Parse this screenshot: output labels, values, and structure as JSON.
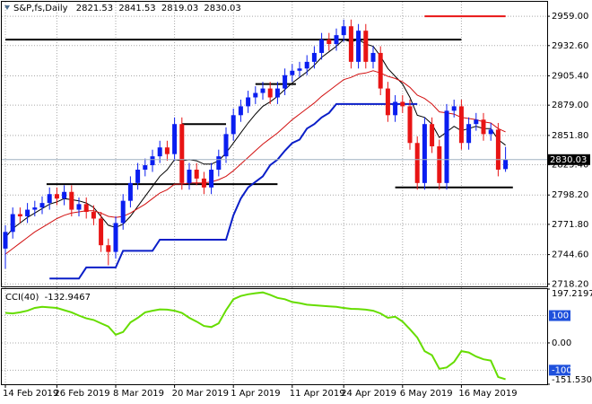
{
  "chart_data": [
    {
      "type": "candlestick",
      "title": "S&P,fs,Daily",
      "categories": [
        "14 Feb 2019",
        null,
        null,
        null,
        null,
        null,
        null,
        "26 Feb 2019",
        null,
        null,
        null,
        null,
        null,
        null,
        null,
        "8 Mar 2019",
        null,
        null,
        null,
        null,
        null,
        null,
        null,
        "20 Mar 2019",
        null,
        null,
        null,
        null,
        null,
        null,
        null,
        "1 Apr 2019",
        null,
        null,
        null,
        null,
        null,
        null,
        null,
        "11 Apr 2019",
        null,
        null,
        null,
        null,
        null,
        null,
        "24 Apr 2019",
        null,
        null,
        null,
        null,
        null,
        null,
        null,
        "6 May 2019",
        null,
        null,
        null,
        null,
        null,
        null,
        null,
        "16 May 2019",
        null,
        null,
        null,
        null,
        null,
        null
      ],
      "open": [
        2750,
        2765,
        2781,
        2779,
        2785,
        2787,
        2791,
        2799,
        2795,
        2801,
        2785,
        2790,
        2783,
        2777,
        2753,
        2747,
        2773,
        2793,
        2809,
        2821,
        2825,
        2833,
        2841,
        2835,
        2862,
        2809,
        2821,
        2813,
        2805,
        2821,
        2833,
        2853,
        2870,
        2878,
        2886,
        2890,
        2894,
        2886,
        2894,
        2906,
        2910,
        2912,
        2918,
        2926,
        2938,
        2934,
        2942,
        2950,
        2918,
        2946,
        2918,
        2926,
        2894,
        2870,
        2882,
        2878,
        2845,
        2809,
        2862,
        2842,
        2809,
        2874,
        2878,
        2845,
        2862,
        2866,
        2853,
        2857,
        2821.53
      ],
      "high": [
        2771,
        2787,
        2787,
        2791,
        2793,
        2797,
        2805,
        2805,
        2807,
        2807,
        2796,
        2796,
        2789,
        2783,
        2759,
        2779,
        2799,
        2815,
        2827,
        2831,
        2839,
        2847,
        2847,
        2868,
        2868,
        2827,
        2827,
        2819,
        2827,
        2839,
        2859,
        2876,
        2884,
        2892,
        2896,
        2900,
        2900,
        2900,
        2912,
        2916,
        2918,
        2924,
        2932,
        2944,
        2944,
        2948,
        2956,
        2956,
        2952,
        2952,
        2932,
        2932,
        2900,
        2888,
        2888,
        2884,
        2851,
        2868,
        2868,
        2848,
        2880,
        2884,
        2884,
        2868,
        2872,
        2872,
        2863,
        2863,
        2841.53
      ],
      "low": [
        2732,
        2759,
        2773,
        2773,
        2779,
        2781,
        2785,
        2789,
        2789,
        2779,
        2779,
        2777,
        2771,
        2747,
        2735,
        2741,
        2767,
        2787,
        2803,
        2815,
        2819,
        2827,
        2829,
        2829,
        2803,
        2803,
        2807,
        2799,
        2799,
        2815,
        2827,
        2847,
        2864,
        2872,
        2880,
        2884,
        2880,
        2880,
        2888,
        2900,
        2904,
        2906,
        2912,
        2920,
        2928,
        2928,
        2936,
        2912,
        2912,
        2912,
        2912,
        2888,
        2864,
        2864,
        2872,
        2839,
        2803,
        2803,
        2836,
        2803,
        2803,
        2868,
        2839,
        2839,
        2856,
        2847,
        2847,
        2815,
        2819.03
      ],
      "close": [
        2765,
        2781,
        2779,
        2785,
        2787,
        2791,
        2799,
        2795,
        2801,
        2785,
        2790,
        2783,
        2777,
        2753,
        2747,
        2773,
        2793,
        2809,
        2821,
        2825,
        2833,
        2841,
        2835,
        2862,
        2809,
        2821,
        2813,
        2805,
        2821,
        2833,
        2853,
        2870,
        2878,
        2886,
        2890,
        2894,
        2886,
        2894,
        2906,
        2910,
        2912,
        2918,
        2926,
        2938,
        2934,
        2942,
        2950,
        2918,
        2946,
        2918,
        2926,
        2894,
        2870,
        2882,
        2878,
        2845,
        2809,
        2862,
        2842,
        2809,
        2874,
        2878,
        2845,
        2862,
        2866,
        2853,
        2857,
        2821,
        2830.03
      ],
      "bull_color": "#0a1ef0",
      "bear_color": "#e81414",
      "lines": [
        {
          "color": "#000000",
          "values": [
            2760,
            2768,
            2773,
            2778,
            2782,
            2786,
            2790,
            2792,
            2795,
            2794,
            2793,
            2791,
            2787,
            2779,
            2771,
            2769,
            2772,
            2779,
            2788,
            2797,
            2806,
            2815,
            2821,
            2830,
            2829,
            2830,
            2829,
            2826,
            2826,
            2829,
            2836,
            2845,
            2854,
            2863,
            2871,
            2878,
            2882,
            2887,
            2893,
            2899,
            2904,
            2909,
            2915,
            2922,
            2927,
            2932,
            2938,
            2936,
            2938,
            2934,
            2932,
            2923,
            2912,
            2905,
            2898,
            2886,
            2870,
            2868,
            2862,
            2850,
            2855,
            2860,
            2856,
            2858,
            2860,
            2858,
            2858,
            2848,
            2843
          ]
        },
        {
          "color": "#d21010",
          "values": [
            2745,
            2750,
            2755,
            2760,
            2765,
            2769,
            2773,
            2777,
            2780,
            2782,
            2783,
            2784,
            2784,
            2782,
            2779,
            2778,
            2779,
            2782,
            2786,
            2790,
            2795,
            2800,
            2803,
            2808,
            2808,
            2809,
            2809,
            2809,
            2810,
            2812,
            2815,
            2820,
            2826,
            2832,
            2838,
            2844,
            2849,
            2854,
            2860,
            2866,
            2871,
            2876,
            2881,
            2887,
            2892,
            2897,
            2902,
            2904,
            2907,
            2908,
            2910,
            2908,
            2905,
            2903,
            2900,
            2895,
            2888,
            2885,
            2880,
            2873,
            2872,
            2871,
            2868,
            2867,
            2866,
            2864,
            2863,
            2858,
            2855
          ]
        },
        {
          "color": "#0a1ec8",
          "values": [
            null,
            null,
            null,
            null,
            null,
            null,
            2723,
            2723,
            2723,
            2723,
            2723,
            2733,
            2733,
            2733,
            2733,
            2733,
            2748,
            2748,
            2748,
            2748,
            2748,
            2758,
            2758,
            2758,
            2758,
            2758,
            2758,
            2758,
            2758,
            2758,
            2758,
            2780,
            2795,
            2805,
            2810,
            2815,
            2825,
            2830,
            2838,
            2845,
            2848,
            2858,
            2862,
            2868,
            2872,
            2880,
            2880,
            2880,
            2880,
            2880,
            2880,
            2880,
            2880,
            2880,
            2880,
            2880,
            2880,
            null,
            null,
            null,
            null,
            null,
            null,
            null,
            null,
            null,
            null,
            null,
            null
          ]
        }
      ],
      "hlines": [
        {
          "value": 2938,
          "start": 0,
          "end": 62,
          "color": "#000000"
        },
        {
          "value": 2898,
          "start": 34,
          "end": 39.5,
          "color": "#000000"
        },
        {
          "value": 2862,
          "start": 24,
          "end": 30,
          "color": "#000000"
        },
        {
          "value": 2808,
          "start": 5.6,
          "end": 37,
          "color": "#000000"
        },
        {
          "value": 2805,
          "start": 53,
          "end": 69,
          "color": "#000000"
        },
        {
          "value": 2959,
          "start": 57,
          "end": 68,
          "color": "#e81414"
        }
      ],
      "ylim": [
        2716,
        2972
      ],
      "yticks": [
        {
          "value": 2959,
          "label": "2959.00"
        },
        {
          "value": 2932.6,
          "label": "2932.60"
        },
        {
          "value": 2905.4,
          "label": "2905.40"
        },
        {
          "value": 2879,
          "label": "2879.00"
        },
        {
          "value": 2851.8,
          "label": "2851.80"
        },
        {
          "value": 2825.4,
          "label": "2825.40"
        },
        {
          "value": 2798.2,
          "label": "2798.20"
        },
        {
          "value": 2771.8,
          "label": "2771.80"
        },
        {
          "value": 2744.6,
          "label": "2744.60"
        },
        {
          "value": 2718.2,
          "label": "2718.20"
        }
      ],
      "grid": true
    },
    {
      "type": "line",
      "title": "CCI(40)",
      "color": "#66dd00",
      "values": [
        110,
        108,
        112,
        118,
        128,
        132,
        130,
        128,
        120,
        112,
        100,
        90,
        84,
        72,
        60,
        30,
        40,
        75,
        92,
        112,
        118,
        123,
        122,
        118,
        110,
        92,
        78,
        62,
        58,
        72,
        120,
        160,
        172,
        178,
        182,
        185,
        176,
        165,
        160,
        150,
        146,
        140,
        138,
        136,
        134,
        132,
        128,
        125,
        124,
        122,
        118,
        108,
        92,
        96,
        78,
        50,
        20,
        -30,
        -45,
        -95,
        -90,
        -70,
        -30,
        -35,
        -50,
        -60,
        -65,
        -125,
        -132.9467
      ],
      "ylim": [
        -151.5305,
        197.2197
      ],
      "yticks": [
        197.2197,
        {
          "value": 0,
          "label": "0.00"
        },
        -151.5305
      ],
      "levels": [
        100,
        -100
      ],
      "level_color": "#1e50dc",
      "grid": true
    }
  ]
}
